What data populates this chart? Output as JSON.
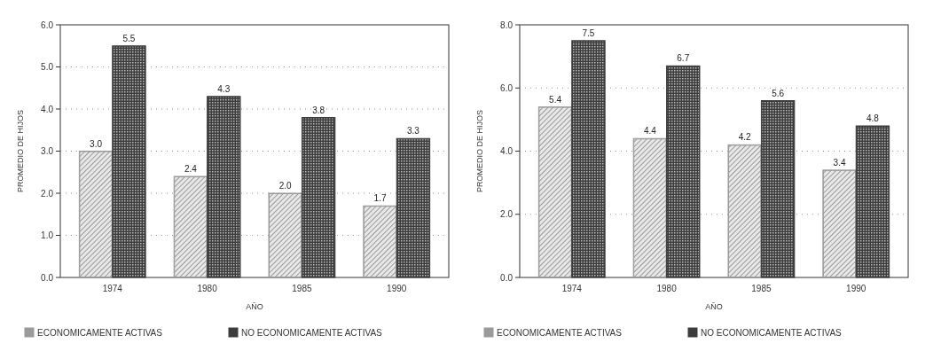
{
  "chart_data": [
    {
      "type": "bar",
      "xlabel": "AÑO",
      "ylabel": "PROMEDIO DE HIJOS",
      "categories": [
        "1974",
        "1980",
        "1985",
        "1990"
      ],
      "series": [
        {
          "name": "ECONOMICAMENTE ACTIVAS",
          "color": "#9a9a9a",
          "values": [
            3.0,
            2.4,
            2.0,
            1.7
          ],
          "value_labels": [
            "3.0",
            "2.4",
            "2.0",
            "1.7"
          ]
        },
        {
          "name": "NO ECONOMICAMENTE ACTIVAS",
          "color": "#3c3c3c",
          "values": [
            5.5,
            4.3,
            3.8,
            3.3
          ],
          "value_labels": [
            "5.5",
            "4.3",
            "3.8",
            "3.3"
          ]
        }
      ],
      "ylim": [
        0,
        6
      ],
      "yticks": [
        {
          "value": 0,
          "label": "0.0"
        },
        {
          "value": 1,
          "label": "1.0"
        },
        {
          "value": 2,
          "label": "2.0"
        },
        {
          "value": 3,
          "label": "3.0"
        },
        {
          "value": 4,
          "label": "4.0"
        },
        {
          "value": 5,
          "label": "5.0"
        },
        {
          "value": 6,
          "label": "6.0"
        }
      ],
      "grid": "y",
      "legend": "bottom"
    },
    {
      "type": "bar",
      "xlabel": "AÑO",
      "ylabel": "PROMEDIO DE HIJOS",
      "categories": [
        "1974",
        "1980",
        "1985",
        "1990"
      ],
      "series": [
        {
          "name": "ECONOMICAMENTE ACTIVAS",
          "color": "#9a9a9a",
          "values": [
            5.4,
            4.4,
            4.2,
            3.4
          ],
          "value_labels": [
            "5.4",
            "4.4",
            "4.2",
            "3.4"
          ]
        },
        {
          "name": "NO ECONOMICAMENTE ACTIVAS",
          "color": "#3c3c3c",
          "values": [
            7.5,
            6.7,
            5.6,
            4.8
          ],
          "value_labels": [
            "7.5",
            "6.7",
            "5.6",
            "4.8"
          ]
        }
      ],
      "ylim": [
        0,
        8
      ],
      "yticks": [
        {
          "value": 0,
          "label": "0.0"
        },
        {
          "value": 2,
          "label": "2.0"
        },
        {
          "value": 4,
          "label": "4.0"
        },
        {
          "value": 6,
          "label": "6.0"
        },
        {
          "value": 8,
          "label": "8.0"
        }
      ],
      "grid": "y",
      "legend": "bottom"
    }
  ]
}
